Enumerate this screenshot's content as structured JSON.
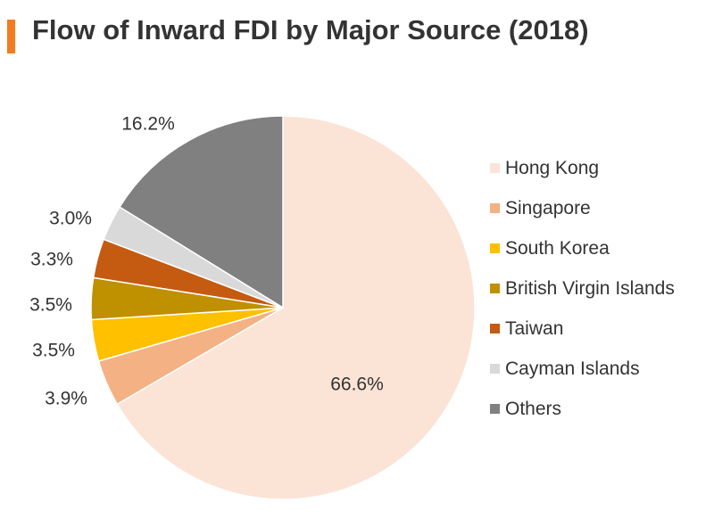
{
  "chart_data": {
    "type": "pie",
    "title": "Flow of Inward FDI by Major Source (2018)",
    "slices": [
      {
        "name": "Hong Kong",
        "value": 66.6,
        "label": "66.6%",
        "color": "#fbe3d6"
      },
      {
        "name": "Singapore",
        "value": 3.9,
        "label": "3.9%",
        "color": "#f4b183"
      },
      {
        "name": "South Korea",
        "value": 3.5,
        "label": "3.5%",
        "color": "#ffc000"
      },
      {
        "name": "British Virgin Islands",
        "value": 3.5,
        "label": "3.5%",
        "color": "#bf9000"
      },
      {
        "name": "Taiwan",
        "value": 3.3,
        "label": "3.3%",
        "color": "#c55a11"
      },
      {
        "name": "Cayman Islands",
        "value": 3.0,
        "label": "3.0%",
        "color": "#d9d9d9"
      },
      {
        "name": "Others",
        "value": 16.2,
        "label": "16.2%",
        "color": "#808080"
      }
    ],
    "start_angle": "12 o'clock",
    "direction": "clockwise",
    "legend_position": "right",
    "accent_color": "#f47b20"
  }
}
